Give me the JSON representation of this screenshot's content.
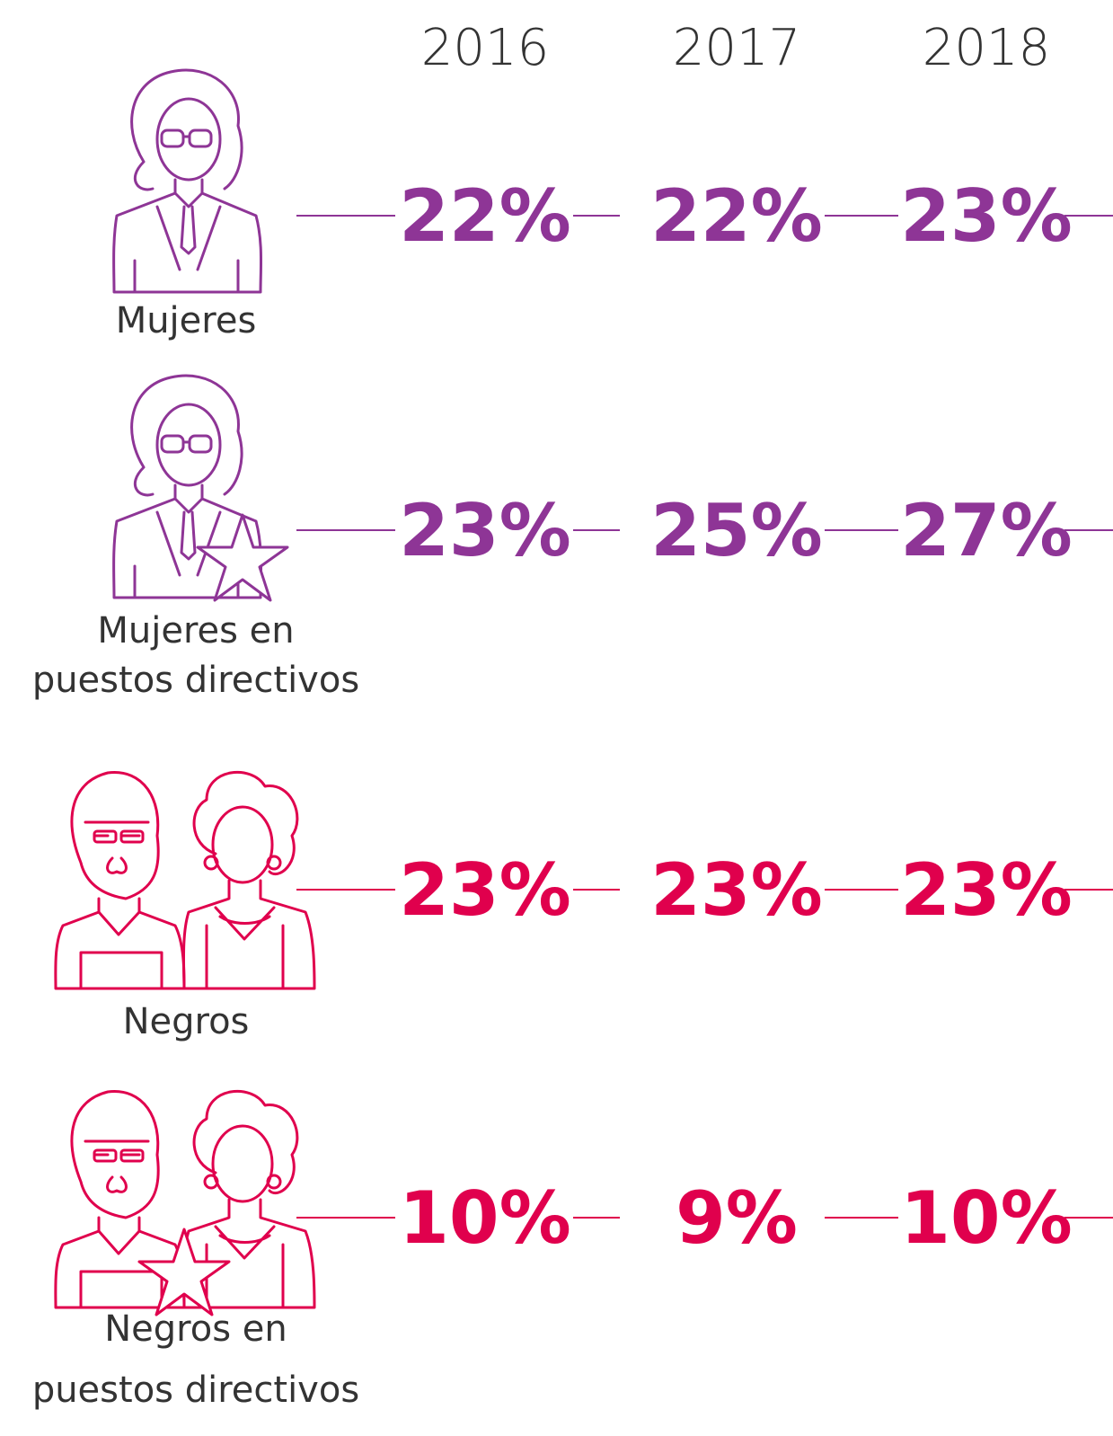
{
  "years": [
    "2016",
    "2017",
    "2018"
  ],
  "rows": [
    {
      "label": [
        "Mujeres"
      ],
      "values": [
        "22%",
        "22%",
        "23%"
      ],
      "color": "#8e3596",
      "icon": "woman",
      "star": false
    },
    {
      "label": [
        "Mujeres en",
        "puestos directivos"
      ],
      "values": [
        "23%",
        "25%",
        "27%"
      ],
      "color": "#8e3596",
      "icon": "woman",
      "star": true
    },
    {
      "label": [
        "Negros"
      ],
      "values": [
        "23%",
        "23%",
        "23%"
      ],
      "color": "#e0004d",
      "icon": "couple",
      "star": false
    },
    {
      "label": [
        "Negros en",
        "puestos directivos"
      ],
      "values": [
        "10%",
        "9%",
        "10%"
      ],
      "color": "#e0004d",
      "icon": "couple",
      "star": true
    }
  ]
}
